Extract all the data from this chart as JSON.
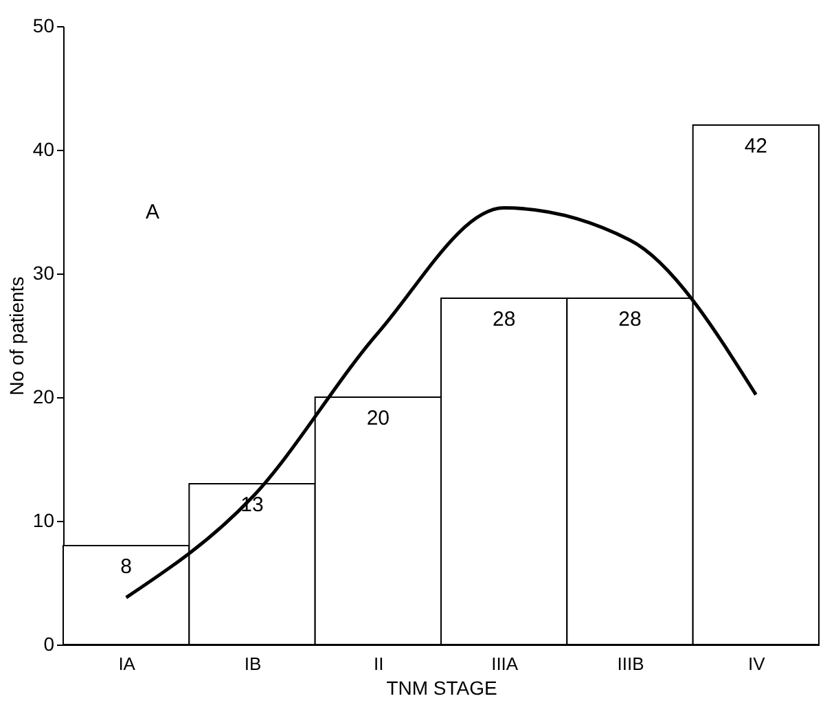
{
  "chart_data": {
    "type": "bar",
    "xlabel": "TNM STAGE",
    "ylabel": "No of patients",
    "categories": [
      "IA",
      "IB",
      "II",
      "IIIA",
      "IIIB",
      "IV"
    ],
    "series": [
      {
        "color": "#ffffff",
        "values": [
          8,
          13,
          20,
          28,
          28,
          42
        ],
        "value_labels": [
          "8",
          "13",
          "20",
          "28",
          "28",
          "42"
        ]
      },
      {
        "type": "line",
        "color": "#000000",
        "values": [
          3.8,
          11.9,
          25.2,
          35.3,
          32.7,
          20.2
        ]
      }
    ],
    "ylim": [
      0,
      50
    ],
    "yticks": [
      0,
      10,
      20,
      30,
      40,
      50
    ],
    "grid": false,
    "annotations": [
      "A"
    ]
  }
}
